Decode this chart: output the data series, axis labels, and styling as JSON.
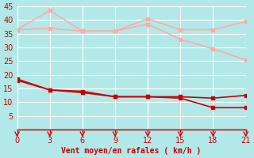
{
  "xlabel": "Vent moyen/en rafales ( km/h )",
  "xlabel_color": "#cc0000",
  "background_color": "#b2e8e8",
  "grid_color": "#c0e0e0",
  "x_ticks": [
    0,
    3,
    6,
    9,
    12,
    15,
    18,
    21
  ],
  "x": [
    0,
    3,
    6,
    9,
    12,
    15,
    18,
    21
  ],
  "ylim": [
    0,
    45
  ],
  "xlim": [
    0,
    21
  ],
  "y_ticks": [
    5,
    10,
    15,
    20,
    25,
    30,
    35,
    40,
    45
  ],
  "line1": {
    "y": [
      36.5,
      43.5,
      36.0,
      36.0,
      40.5,
      36.5,
      36.5,
      39.5
    ],
    "color": "#ffaaaa",
    "linewidth": 1.2,
    "marker": "s",
    "markersize": 2.5,
    "linestyle": "-"
  },
  "line2": {
    "y": [
      36.5,
      37.0,
      36.0,
      36.0,
      38.5,
      33.0,
      29.5,
      25.5
    ],
    "color": "#ffaaaa",
    "linewidth": 1.2,
    "marker": "s",
    "markersize": 2.5,
    "linestyle": "-"
  },
  "line3": {
    "y": [
      18.5,
      14.5,
      14.0,
      12.0,
      12.0,
      12.0,
      11.5,
      12.5
    ],
    "color": "#cc0000",
    "linewidth": 1.2,
    "marker": "s",
    "markersize": 2.5,
    "linestyle": "-"
  },
  "line4": {
    "y": [
      18.0,
      14.5,
      13.5,
      12.0,
      12.0,
      11.5,
      8.0,
      8.0
    ],
    "color": "#cc0000",
    "linewidth": 1.2,
    "marker": "s",
    "markersize": 2.5,
    "linestyle": "-"
  },
  "arrow_color": "#cc0000",
  "axis_line_color": "#cc0000",
  "tick_color": "#cc0000",
  "tick_fontsize": 7,
  "xlabel_fontsize": 7
}
